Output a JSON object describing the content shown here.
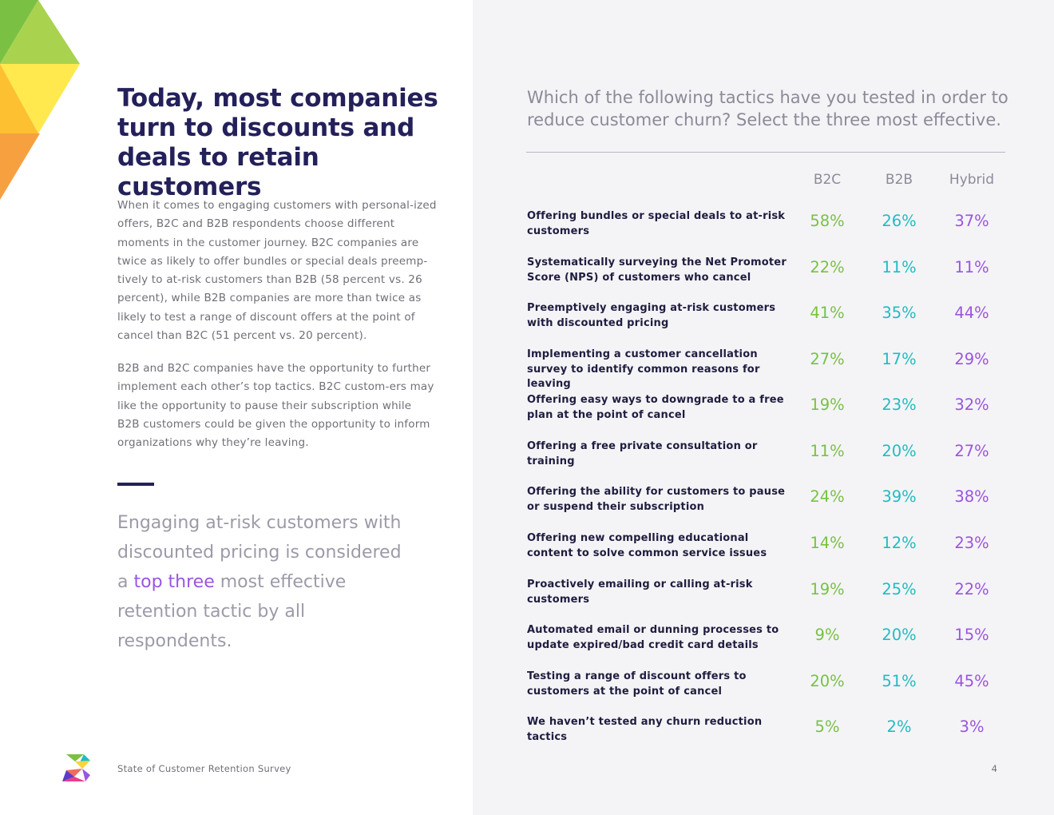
{
  "headline": "Today, most companies turn to discounts and deals to retain customers",
  "body_paragraphs": [
    "When it comes to engaging customers with personal-ized offers, B2C and B2B respondents choose different moments in the customer journey. B2C companies are twice as likely to offer bundles or special deals preemp-tively to at-risk customers than B2B (58 percent vs. 26 percent), while B2B companies are more than twice as likely to test a range of discount offers at the point of cancel than B2C (51 percent vs. 20 percent).",
    "B2B and B2C companies have the opportunity to further implement each other’s top tactics. B2C custom-ers may like the opportunity to pause their subscription while B2B customers could be given the opportunity to inform organizations why they’re leaving."
  ],
  "pull_quote": {
    "before": "Engaging at-risk customers with discounted pricing is considered a ",
    "highlight": "top three",
    "after": " most effective retention tactic by all respondents."
  },
  "footer": {
    "title": "State of Customer Retention Survey",
    "page_number": "4"
  },
  "question": "Which of the following tactics have you tested in order to reduce customer churn? Select the three most effective.",
  "table": {
    "columns": [
      "B2C",
      "B2B",
      "Hybrid"
    ],
    "rows": [
      {
        "label": "Offering bundles or special deals to at-risk customers",
        "b2c": "58%",
        "b2b": "26%",
        "hybrid": "37%"
      },
      {
        "label": "Systematically surveying the Net Promoter Score (NPS) of customers who cancel",
        "b2c": "22%",
        "b2b": "11%",
        "hybrid": "11%"
      },
      {
        "label": "Preemptively engaging at-risk customers with discounted pricing",
        "b2c": "41%",
        "b2b": "35%",
        "hybrid": "44%"
      },
      {
        "label": "Implementing a customer cancellation survey to identify common reasons for leaving",
        "b2c": "27%",
        "b2b": "17%",
        "hybrid": "29%"
      },
      {
        "label": "Offering easy ways to downgrade to a free plan at the point of cancel",
        "b2c": "19%",
        "b2b": "23%",
        "hybrid": "32%"
      },
      {
        "label": "Offering a free private consultation or training",
        "b2c": "11%",
        "b2b": "20%",
        "hybrid": "27%"
      },
      {
        "label": "Offering the ability for customers to pause or suspend their subscription",
        "b2c": "24%",
        "b2b": "39%",
        "hybrid": "38%"
      },
      {
        "label": "Offering new compelling educational content to solve common service issues",
        "b2c": "14%",
        "b2b": "12%",
        "hybrid": "23%"
      },
      {
        "label": "Proactively emailing or calling at-risk customers",
        "b2c": "19%",
        "b2b": "25%",
        "hybrid": "22%"
      },
      {
        "label": "Automated email or dunning processes to update expired/bad credit card details",
        "b2c": "9%",
        "b2b": "20%",
        "hybrid": "15%"
      },
      {
        "label": "Testing a range of discount offers to customers at the point of cancel",
        "b2c": "20%",
        "b2b": "51%",
        "hybrid": "45%"
      },
      {
        "label": "We haven’t tested any churn reduction tactics",
        "b2c": "5%",
        "b2b": "2%",
        "hybrid": "3%"
      }
    ]
  },
  "colors": {
    "navy": "#23205a",
    "b2c_green": "#7ac143",
    "b2b_teal": "#22bcc1",
    "hybrid_purple": "#9b55e0",
    "panel_bg": "#f4f4f7"
  }
}
